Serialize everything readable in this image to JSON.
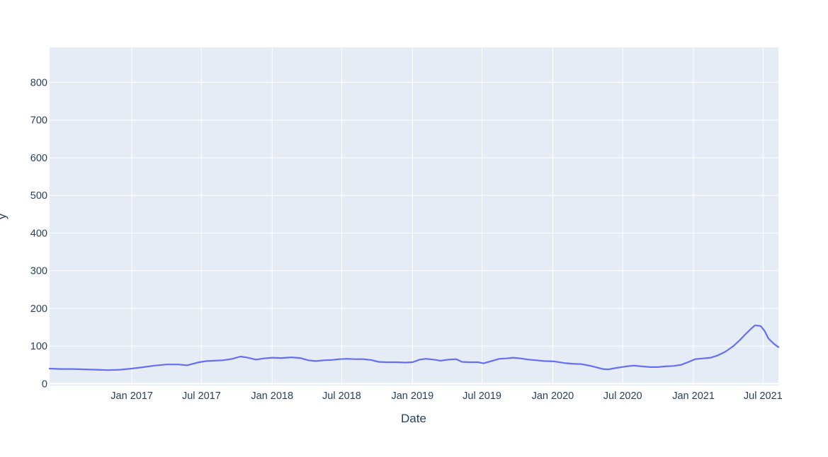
{
  "chart_data": {
    "type": "line",
    "title": "",
    "xlabel": "Date",
    "ylabel": "y",
    "ylim": [
      -5,
      893
    ],
    "xlim": [
      "2016-06-01",
      "2021-08-10"
    ],
    "grid": true,
    "legend": "none",
    "colors": {
      "plot_bg": "#e5ecf6",
      "grid": "#ffffff",
      "line": "#636efa",
      "text": "#2a3f5f"
    },
    "y_ticks": [
      0,
      100,
      200,
      300,
      400,
      500,
      600,
      700,
      800
    ],
    "x_ticks": [
      {
        "date": "2017-01-01",
        "label": "Jan 2017"
      },
      {
        "date": "2017-07-01",
        "label": "Jul 2017"
      },
      {
        "date": "2018-01-01",
        "label": "Jan 2018"
      },
      {
        "date": "2018-07-01",
        "label": "Jul 2018"
      },
      {
        "date": "2019-01-01",
        "label": "Jan 2019"
      },
      {
        "date": "2019-07-01",
        "label": "Jul 2019"
      },
      {
        "date": "2020-01-01",
        "label": "Jan 2020"
      },
      {
        "date": "2020-07-01",
        "label": "Jul 2020"
      },
      {
        "date": "2021-01-01",
        "label": "Jan 2021"
      },
      {
        "date": "2021-07-01",
        "label": "Jul 2021"
      }
    ],
    "series": [
      {
        "points": [
          [
            "2016-06-01",
            40
          ],
          [
            "2016-07-01",
            39
          ],
          [
            "2016-08-01",
            39
          ],
          [
            "2016-09-01",
            38
          ],
          [
            "2016-10-01",
            37
          ],
          [
            "2016-11-01",
            36
          ],
          [
            "2016-12-01",
            37
          ],
          [
            "2017-01-01",
            40
          ],
          [
            "2017-02-01",
            44
          ],
          [
            "2017-03-01",
            48
          ],
          [
            "2017-04-01",
            51
          ],
          [
            "2017-05-01",
            51
          ],
          [
            "2017-05-25",
            49
          ],
          [
            "2017-06-25",
            57
          ],
          [
            "2017-07-15",
            60
          ],
          [
            "2017-08-01",
            61
          ],
          [
            "2017-08-25",
            62
          ],
          [
            "2017-09-20",
            66
          ],
          [
            "2017-10-10",
            72
          ],
          [
            "2017-10-25",
            70
          ],
          [
            "2017-11-20",
            64
          ],
          [
            "2017-12-10",
            67
          ],
          [
            "2018-01-01",
            69
          ],
          [
            "2018-01-25",
            68
          ],
          [
            "2018-02-20",
            70
          ],
          [
            "2018-03-15",
            68
          ],
          [
            "2018-04-05",
            62
          ],
          [
            "2018-04-25",
            60
          ],
          [
            "2018-05-15",
            62
          ],
          [
            "2018-06-05",
            63
          ],
          [
            "2018-06-25",
            65
          ],
          [
            "2018-07-15",
            66
          ],
          [
            "2018-08-05",
            65
          ],
          [
            "2018-08-25",
            65
          ],
          [
            "2018-09-15",
            63
          ],
          [
            "2018-10-05",
            58
          ],
          [
            "2018-10-25",
            57
          ],
          [
            "2018-11-20",
            57
          ],
          [
            "2018-12-15",
            56
          ],
          [
            "2019-01-01",
            57
          ],
          [
            "2019-01-20",
            64
          ],
          [
            "2019-02-05",
            66
          ],
          [
            "2019-02-25",
            64
          ],
          [
            "2019-03-15",
            61
          ],
          [
            "2019-04-05",
            64
          ],
          [
            "2019-04-25",
            65
          ],
          [
            "2019-05-10",
            58
          ],
          [
            "2019-05-30",
            57
          ],
          [
            "2019-06-20",
            57
          ],
          [
            "2019-07-05",
            54
          ],
          [
            "2019-07-25",
            60
          ],
          [
            "2019-08-15",
            66
          ],
          [
            "2019-09-01",
            67
          ],
          [
            "2019-09-20",
            69
          ],
          [
            "2019-10-10",
            67
          ],
          [
            "2019-10-30",
            64
          ],
          [
            "2019-11-20",
            62
          ],
          [
            "2019-12-10",
            60
          ],
          [
            "2020-01-05",
            59
          ],
          [
            "2020-01-30",
            55
          ],
          [
            "2020-02-20",
            53
          ],
          [
            "2020-03-15",
            52
          ],
          [
            "2020-04-05",
            48
          ],
          [
            "2020-04-25",
            43
          ],
          [
            "2020-05-10",
            39
          ],
          [
            "2020-05-25",
            38
          ],
          [
            "2020-06-15",
            42
          ],
          [
            "2020-07-10",
            46
          ],
          [
            "2020-07-30",
            48
          ],
          [
            "2020-08-20",
            46
          ],
          [
            "2020-09-10",
            44
          ],
          [
            "2020-09-30",
            44
          ],
          [
            "2020-10-20",
            46
          ],
          [
            "2020-11-10",
            47
          ],
          [
            "2020-11-30",
            50
          ],
          [
            "2020-12-20",
            58
          ],
          [
            "2021-01-05",
            65
          ],
          [
            "2021-01-25",
            67
          ],
          [
            "2021-02-15",
            69
          ],
          [
            "2021-03-05",
            75
          ],
          [
            "2021-03-25",
            85
          ],
          [
            "2021-04-15",
            100
          ],
          [
            "2021-05-01",
            115
          ],
          [
            "2021-05-15",
            130
          ],
          [
            "2021-05-30",
            145
          ],
          [
            "2021-06-10",
            155
          ],
          [
            "2021-06-25",
            153
          ],
          [
            "2021-07-05",
            140
          ],
          [
            "2021-07-15",
            120
          ],
          [
            "2021-07-30",
            105
          ],
          [
            "2021-08-10",
            97
          ]
        ]
      }
    ]
  }
}
